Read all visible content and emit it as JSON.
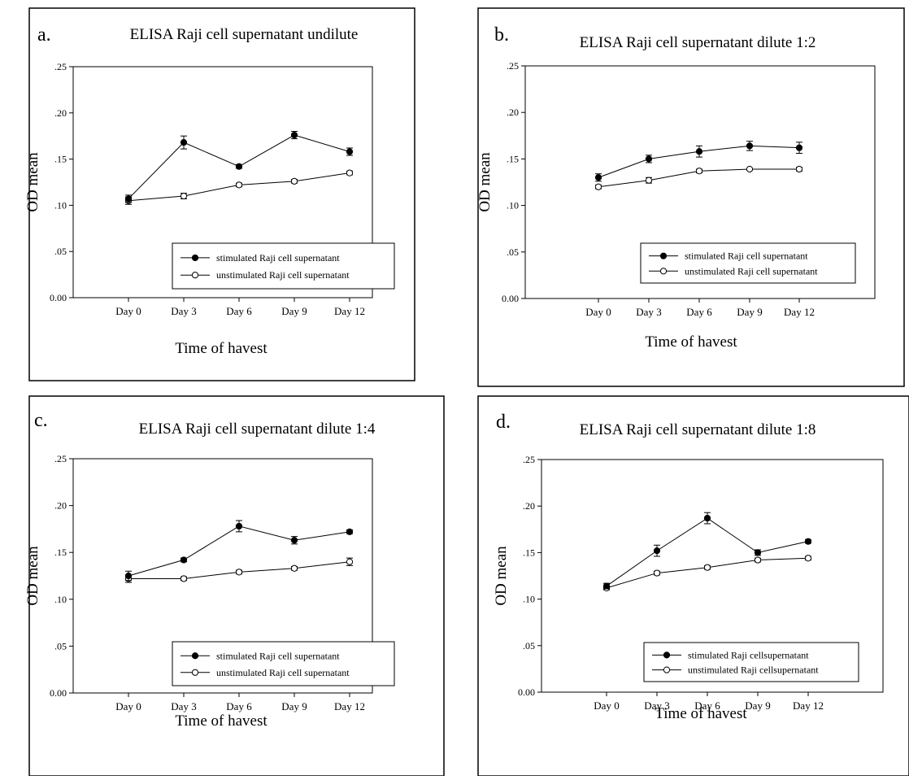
{
  "chart_data": [
    {
      "type": "line",
      "panel_label": "a.",
      "title": "ELISA Raji cell supernatant undilute",
      "xlabel": "Time of havest",
      "ylabel": "OD mean",
      "ylim": [
        0,
        0.25
      ],
      "yticks": [
        "0.00",
        ".05",
        ".10",
        ".15",
        ".20",
        ".25"
      ],
      "categories": [
        "Day 0",
        "Day 3",
        "Day 6",
        "Day 9",
        "Day 12"
      ],
      "legend_position": "bottom-right",
      "series": [
        {
          "name": "stimulated Raji cell supernatant",
          "marker": "filled-circle",
          "values": [
            0.107,
            0.168,
            0.142,
            0.176,
            0.158
          ],
          "errors": [
            0.004,
            0.007,
            0.002,
            0.004,
            0.004
          ]
        },
        {
          "name": "unstimulated Raji cell supernatant",
          "marker": "open-circle",
          "values": [
            0.105,
            0.11,
            0.122,
            0.126,
            0.135
          ],
          "errors": [
            0.004,
            0.003,
            0.002,
            0.002,
            0.002
          ]
        }
      ]
    },
    {
      "type": "line",
      "panel_label": "b.",
      "title": "ELISA Raji cell supernatant dilute 1:2",
      "xlabel": "Time of havest",
      "ylabel": "OD mean",
      "ylim": [
        0,
        0.25
      ],
      "yticks": [
        "0.00",
        ".05",
        ".10",
        ".15",
        ".20",
        ".25"
      ],
      "categories": [
        "Day 0",
        "Day 3",
        "Day 6",
        "Day 9",
        "Day 12"
      ],
      "legend_position": "bottom-right",
      "series": [
        {
          "name": "stimulated Raji cell supernatant",
          "marker": "filled-circle",
          "values": [
            0.13,
            0.15,
            0.158,
            0.164,
            0.162
          ],
          "errors": [
            0.004,
            0.004,
            0.006,
            0.005,
            0.006
          ]
        },
        {
          "name": "unstimulated Raji cell supernatant",
          "marker": "open-circle",
          "values": [
            0.12,
            0.127,
            0.137,
            0.139,
            0.139
          ],
          "errors": [
            0.002,
            0.003,
            0.002,
            0.001,
            0.002
          ]
        }
      ]
    },
    {
      "type": "line",
      "panel_label": "c.",
      "title": "ELISA Raji cell supernatant dilute 1:4",
      "xlabel": "Time of havest",
      "ylabel": "OD mean",
      "ylim": [
        0,
        0.25
      ],
      "yticks": [
        "0.00",
        ".05",
        ".10",
        ".15",
        ".20",
        ".25"
      ],
      "categories": [
        "Day 0",
        "Day 3",
        "Day 6",
        "Day 9",
        "Day 12"
      ],
      "legend_position": "bottom-right",
      "series": [
        {
          "name": "stimulated Raji cell supernatant",
          "marker": "filled-circle",
          "values": [
            0.125,
            0.142,
            0.178,
            0.163,
            0.172
          ],
          "errors": [
            0.005,
            0.002,
            0.006,
            0.004,
            0.002
          ]
        },
        {
          "name": "unstimulated Raji cell supernatant",
          "marker": "open-circle",
          "values": [
            0.122,
            0.122,
            0.129,
            0.133,
            0.14
          ],
          "errors": [
            0.004,
            0.002,
            0.002,
            0.002,
            0.004
          ]
        }
      ]
    },
    {
      "type": "line",
      "panel_label": "d.",
      "title": "ELISA Raji cell supernatant dilute 1:8",
      "xlabel": "Time of havest",
      "ylabel": "OD mean",
      "ylim": [
        0,
        0.25
      ],
      "yticks": [
        "0.00",
        ".05",
        ".10",
        ".15",
        ".20",
        ".25"
      ],
      "categories": [
        "Day 0",
        "Day 3",
        "Day 6",
        "Day 9",
        "Day 12"
      ],
      "legend_position": "bottom-right",
      "series": [
        {
          "name": "stimulated Raji cellsupernatant",
          "marker": "filled-circle",
          "values": [
            0.114,
            0.152,
            0.187,
            0.15,
            0.162
          ],
          "errors": [
            0.003,
            0.006,
            0.006,
            0.003,
            0.002
          ]
        },
        {
          "name": "unstimulated Raji cellsupernatant",
          "marker": "open-circle",
          "values": [
            0.112,
            0.128,
            0.134,
            0.142,
            0.144
          ],
          "errors": [
            0.002,
            0.002,
            0.002,
            0.002,
            0.002
          ]
        }
      ]
    }
  ]
}
